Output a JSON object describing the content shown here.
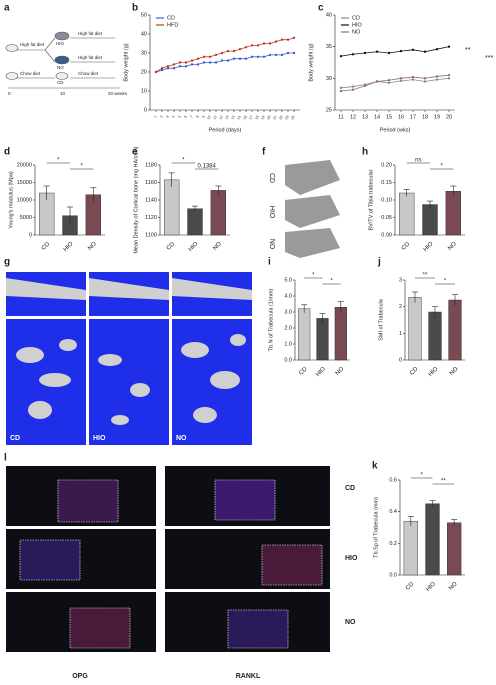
{
  "diagram": {
    "label": "a",
    "branches": [
      "High fat diet",
      "High fat diet",
      "High fat diet",
      "Chow diet",
      "Chow diet"
    ],
    "groups": [
      "HIO",
      "NO",
      "CD"
    ],
    "timeline": [
      "0",
      "10",
      "20 weeks"
    ]
  },
  "images": [
    {
      "label": "f",
      "captions": [
        "CD",
        "HIO",
        "NO"
      ]
    },
    {
      "label": "g",
      "captions": [
        "CD",
        "HIO",
        "NO"
      ]
    },
    {
      "label": "l",
      "columns": [
        "OPG",
        "RANKL"
      ],
      "rows": [
        "CD",
        "HIO",
        "NO"
      ]
    }
  ],
  "chart_data": [
    {
      "type": "line",
      "label": "b",
      "y_label": "Body weight (g)",
      "x_label": "Period (days)",
      "legend": "top-left",
      "markers": true,
      "x": [
        1,
        2,
        3,
        4,
        5,
        6,
        7,
        8,
        9,
        10,
        11,
        12,
        13,
        14,
        15,
        16,
        17,
        18,
        19,
        20,
        21,
        22,
        23,
        24
      ],
      "xlim": [
        0,
        25
      ],
      "xticks": [
        1,
        2,
        3,
        4,
        5,
        6,
        7,
        8,
        9,
        10,
        11,
        12,
        13,
        14,
        15,
        16,
        17,
        18,
        19,
        20,
        21,
        22,
        23,
        24
      ],
      "ylim": [
        0,
        50
      ],
      "yticks": [
        0,
        10,
        20,
        30,
        40,
        50
      ],
      "series": [
        {
          "name": "CD",
          "color": "#3a5fcd",
          "values": [
            20,
            21,
            22,
            22,
            23,
            23,
            24,
            24,
            25,
            25,
            25,
            26,
            26,
            27,
            27,
            27,
            28,
            28,
            28,
            29,
            29,
            29,
            30,
            30
          ]
        },
        {
          "name": "HFD",
          "color": "#c0392b",
          "values": [
            20,
            22,
            23,
            24,
            25,
            25,
            26,
            27,
            28,
            28,
            29,
            30,
            31,
            31,
            32,
            33,
            34,
            34,
            35,
            35,
            36,
            37,
            37,
            38
          ]
        }
      ]
    },
    {
      "type": "line",
      "label": "c",
      "y_label": "Body weight (g)",
      "x_label": "Period (wks)",
      "legend": "top-left",
      "markers": true,
      "x": [
        11,
        12,
        13,
        14,
        15,
        16,
        17,
        18,
        19,
        20
      ],
      "xlim": [
        10.5,
        20.5
      ],
      "xticks": [
        11,
        12,
        13,
        14,
        15,
        16,
        17,
        18,
        19,
        20
      ],
      "ylim": [
        25,
        40
      ],
      "yticks": [
        25,
        30,
        35,
        40
      ],
      "annotations": [
        "**",
        "***"
      ],
      "series": [
        {
          "name": "CD",
          "color": "#888888",
          "values": [
            28.5,
            28.7,
            29,
            29.5,
            29.3,
            29.6,
            29.8,
            29.5,
            29.8,
            30
          ]
        },
        {
          "name": "HIO",
          "color": "#111111",
          "values": [
            33.5,
            33.8,
            34,
            34.2,
            34,
            34.3,
            34.5,
            34.2,
            34.6,
            35
          ]
        },
        {
          "name": "NO",
          "color": "#8e6b72",
          "values": [
            28,
            28.2,
            28.8,
            29.5,
            29.7,
            30,
            30.2,
            30,
            30.3,
            30.5
          ]
        }
      ]
    },
    {
      "type": "bar",
      "label": "d",
      "y_label": "Young's modulus (Mpa)",
      "categories": [
        "CD",
        "HIO",
        "NO"
      ],
      "values": [
        12000,
        5500,
        11500
      ],
      "errors": [
        2000,
        2500,
        2000
      ],
      "colors": [
        "#c8c8c8",
        "#4a4a4a",
        "#7a4a52"
      ],
      "ylim": [
        0,
        20000
      ],
      "yticks": [
        0,
        5000,
        10000,
        15000,
        20000
      ],
      "annotations": [
        "*",
        "*"
      ]
    },
    {
      "type": "bar",
      "label": "e",
      "y_label": "Mean Density of Cortical bone (mg HA/ccm)",
      "categories": [
        "CD",
        "HIO",
        "NO"
      ],
      "values": [
        1163,
        1130,
        1151
      ],
      "errors": [
        8,
        3,
        5
      ],
      "colors": [
        "#c8c8c8",
        "#4a4a4a",
        "#7a4a52"
      ],
      "ylim": [
        1100,
        1180
      ],
      "yticks": [
        1100,
        1120,
        1140,
        1160,
        1180
      ],
      "annotations": [
        "*",
        "0.1384"
      ]
    },
    {
      "type": "bar",
      "label": "h",
      "y_label": "BV/TV of Tibia trabecular",
      "categories": [
        "CD",
        "HIO",
        "NO"
      ],
      "values": [
        0.12,
        0.087,
        0.125
      ],
      "errors": [
        0.01,
        0.01,
        0.015
      ],
      "colors": [
        "#c8c8c8",
        "#4a4a4a",
        "#7a4a52"
      ],
      "ylim": [
        0,
        0.2
      ],
      "yticks": [
        {
          "value": 0,
          "label": "0.00"
        },
        {
          "value": 0.05,
          "label": "0.05"
        },
        {
          "value": 0.1,
          "label": "0.10"
        },
        {
          "value": 0.15,
          "label": "0.15"
        },
        {
          "value": 0.2,
          "label": "0.20"
        }
      ],
      "annotations": [
        "ns",
        "*"
      ]
    },
    {
      "type": "bar",
      "label": "i",
      "y_label": "Tb.N of Trabecula (1/mm)",
      "categories": [
        "CD",
        "HIO",
        "NO"
      ],
      "values": [
        3.2,
        2.6,
        3.3
      ],
      "errors": [
        0.25,
        0.3,
        0.35
      ],
      "colors": [
        "#c8c8c8",
        "#4a4a4a",
        "#7a4a52"
      ],
      "ylim": [
        0,
        5
      ],
      "yticks": [
        {
          "value": 0,
          "label": "0.0"
        },
        {
          "value": 1,
          "label": "1.0"
        },
        {
          "value": 2,
          "label": "2.0"
        },
        {
          "value": 3,
          "label": "3.0"
        },
        {
          "value": 4,
          "label": "4.0"
        },
        {
          "value": 5,
          "label": "5.0"
        }
      ],
      "annotations": [
        "*",
        "*"
      ]
    },
    {
      "type": "bar",
      "label": "j",
      "y_label": "SMI of Trabecula",
      "categories": [
        "CD",
        "HIO",
        "NO"
      ],
      "values": [
        2.35,
        1.8,
        2.25
      ],
      "errors": [
        0.2,
        0.2,
        0.2
      ],
      "colors": [
        "#c8c8c8",
        "#4a4a4a",
        "#7a4a52"
      ],
      "ylim": [
        0,
        3
      ],
      "yticks": [
        0,
        1,
        2,
        3
      ],
      "annotations": [
        "**",
        "*"
      ]
    },
    {
      "type": "bar",
      "label": "k",
      "y_label": "Tb.Sp of Trabecula (mm)",
      "categories": [
        "CD",
        "HIO",
        "NO"
      ],
      "values": [
        0.34,
        0.45,
        0.33
      ],
      "errors": [
        0.03,
        0.02,
        0.02
      ],
      "colors": [
        "#c8c8c8",
        "#4a4a4a",
        "#7a4a52"
      ],
      "ylim": [
        0,
        0.6
      ],
      "yticks": [
        {
          "value": 0,
          "label": "0.0"
        },
        {
          "value": 0.2,
          "label": "0.2"
        },
        {
          "value": 0.4,
          "label": "0.4"
        },
        {
          "value": 0.6,
          "label": "0.6"
        }
      ],
      "annotations": [
        "*",
        "**"
      ]
    }
  ]
}
